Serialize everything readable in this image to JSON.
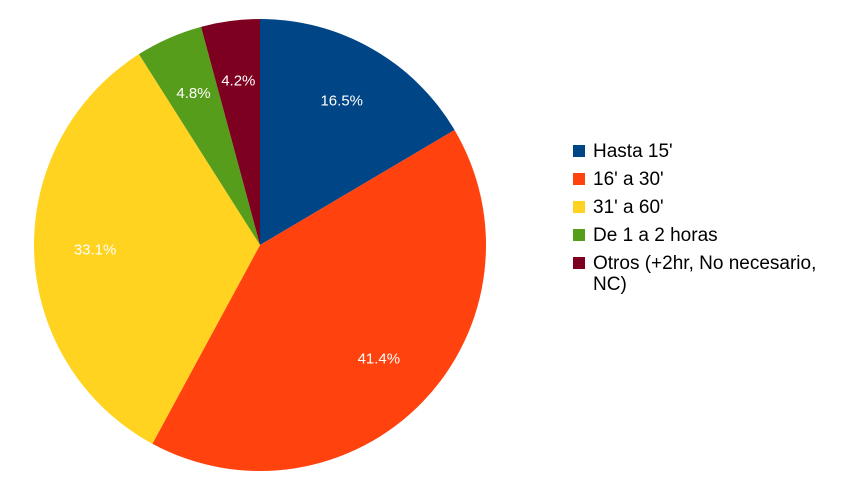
{
  "chart_data": {
    "type": "pie",
    "start_angle": 90,
    "direction": "clockwise",
    "slices": [
      {
        "label": "Hasta 15'",
        "value": 16.5,
        "display": "16.5%",
        "color": "#004586"
      },
      {
        "label": "16' a 30'",
        "value": 41.4,
        "display": "41.4%",
        "color": "#ff420e"
      },
      {
        "label": "31' a 60'",
        "value": 33.1,
        "display": "33.1%",
        "color": "#ffd320"
      },
      {
        "label": "De 1 a 2 horas",
        "value": 4.8,
        "display": "4.8%",
        "color": "#579d1c"
      },
      {
        "label": "Otros (+2hr, No necesario, NC)",
        "value": 4.2,
        "display": "4.2%",
        "color": "#7e0021"
      }
    ],
    "legend_position": "right"
  }
}
